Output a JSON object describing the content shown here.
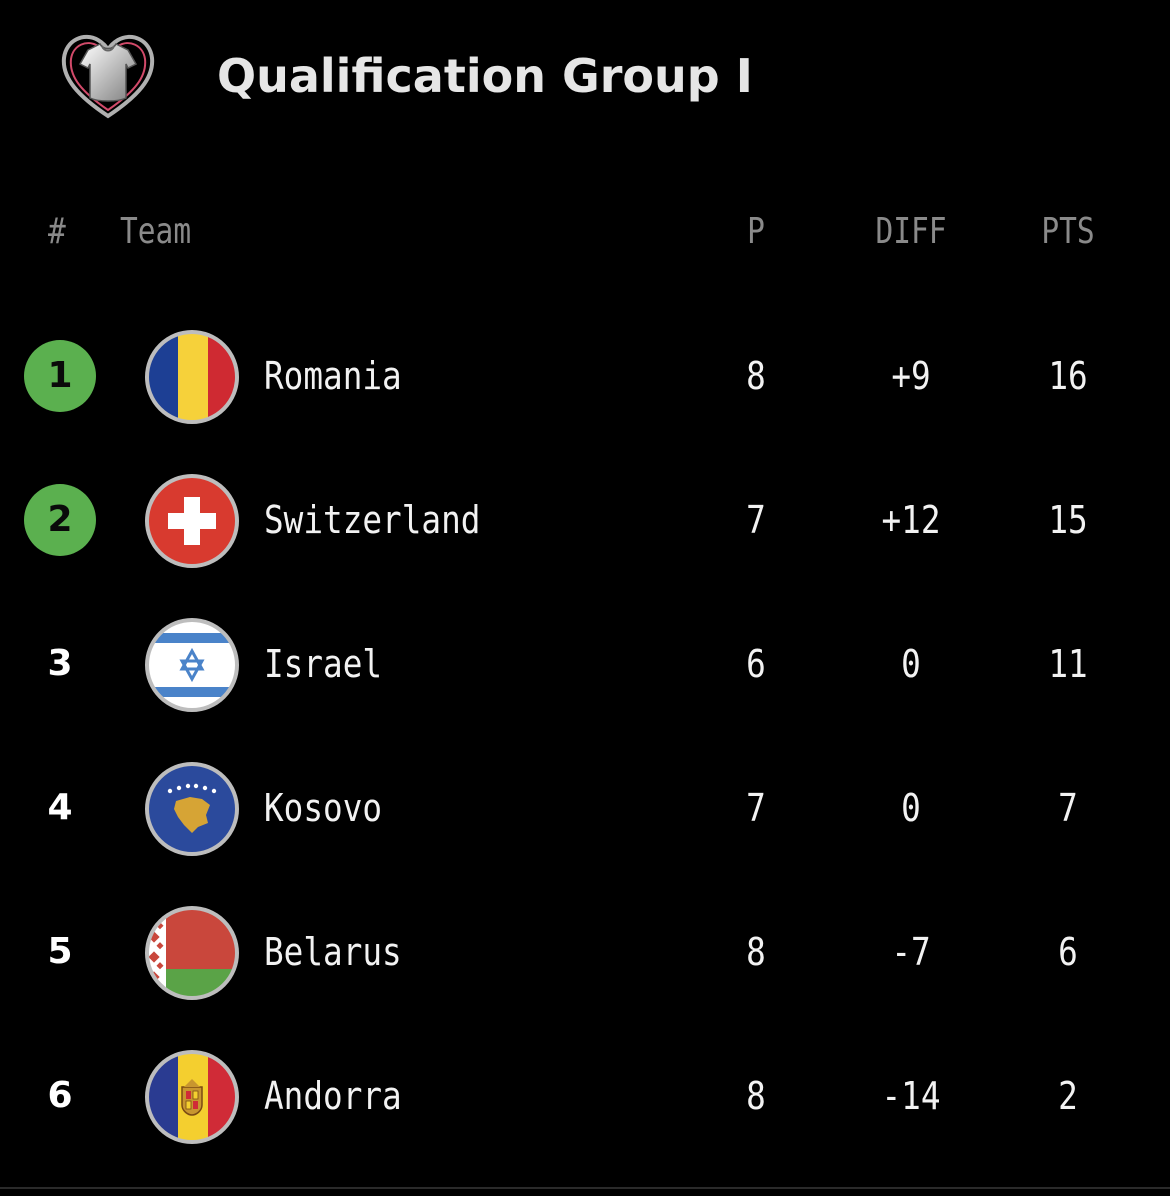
{
  "header": {
    "title": "Qualification Group I",
    "logo_icon": "euro-qualifiers-heart-shirt-logo"
  },
  "columns": {
    "rank": "#",
    "team": "Team",
    "played": "P",
    "diff": "DIFF",
    "points": "PTS"
  },
  "colors": {
    "background": "#000000",
    "qualified_badge": "#5bb04f",
    "header_text": "#8a8a8a",
    "row_text": "#f2f2f2"
  },
  "standings": [
    {
      "rank": "1",
      "team": "Romania",
      "played": "8",
      "diff": "+9",
      "points": "16",
      "qualified": true,
      "flag_icon": "romania-flag-icon"
    },
    {
      "rank": "2",
      "team": "Switzerland",
      "played": "7",
      "diff": "+12",
      "points": "15",
      "qualified": true,
      "flag_icon": "switzerland-flag-icon"
    },
    {
      "rank": "3",
      "team": "Israel",
      "played": "6",
      "diff": "0",
      "points": "11",
      "qualified": false,
      "flag_icon": "israel-flag-icon"
    },
    {
      "rank": "4",
      "team": "Kosovo",
      "played": "7",
      "diff": "0",
      "points": "7",
      "qualified": false,
      "flag_icon": "kosovo-flag-icon"
    },
    {
      "rank": "5",
      "team": "Belarus",
      "played": "8",
      "diff": "-7",
      "points": "6",
      "qualified": false,
      "flag_icon": "belarus-flag-icon"
    },
    {
      "rank": "6",
      "team": "Andorra",
      "played": "8",
      "diff": "-14",
      "points": "2",
      "qualified": false,
      "flag_icon": "andorra-flag-icon"
    }
  ]
}
